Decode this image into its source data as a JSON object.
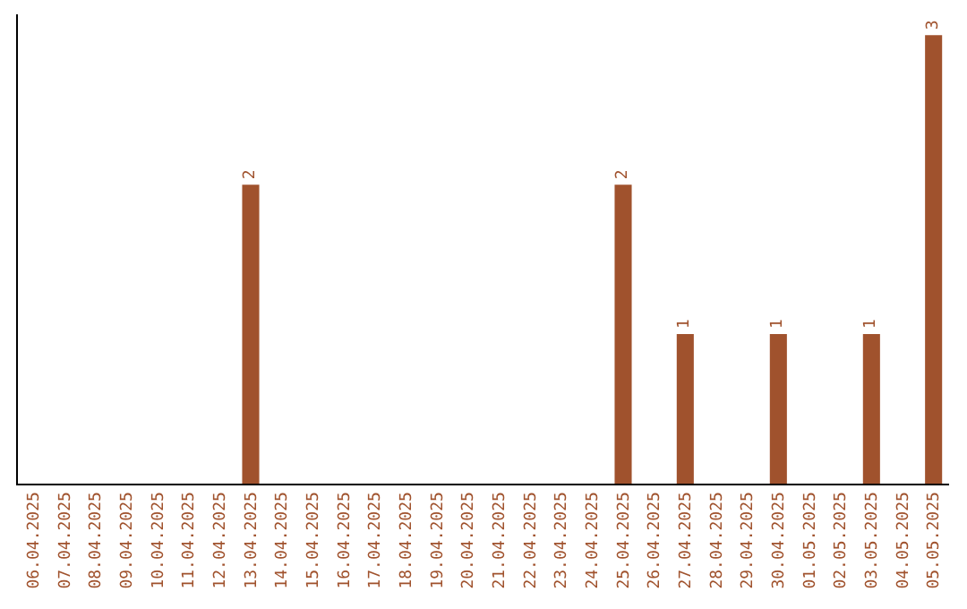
{
  "chart_data": {
    "type": "bar",
    "categories": [
      "06.04.2025",
      "07.04.2025",
      "08.04.2025",
      "09.04.2025",
      "10.04.2025",
      "11.04.2025",
      "12.04.2025",
      "13.04.2025",
      "14.04.2025",
      "15.04.2025",
      "16.04.2025",
      "17.04.2025",
      "18.04.2025",
      "19.04.2025",
      "20.04.2025",
      "21.04.2025",
      "22.04.2025",
      "23.04.2025",
      "24.04.2025",
      "25.04.2025",
      "26.04.2025",
      "27.04.2025",
      "28.04.2025",
      "29.04.2025",
      "30.04.2025",
      "01.05.2025",
      "02.05.2025",
      "03.05.2025",
      "04.05.2025",
      "05.05.2025"
    ],
    "values": [
      0,
      0,
      0,
      0,
      0,
      0,
      0,
      2,
      0,
      0,
      0,
      0,
      0,
      0,
      0,
      0,
      0,
      0,
      0,
      2,
      0,
      1,
      0,
      0,
      1,
      0,
      0,
      1,
      0,
      3
    ],
    "value_labels": [
      null,
      null,
      null,
      null,
      null,
      null,
      null,
      "2",
      null,
      null,
      null,
      null,
      null,
      null,
      null,
      null,
      null,
      null,
      null,
      "2",
      null,
      "1",
      null,
      null,
      "1",
      null,
      null,
      "1",
      null,
      "3"
    ],
    "color": "#a0522d",
    "ylim": [
      0,
      3.14
    ],
    "tick_labels": "x",
    "legend": false
  }
}
